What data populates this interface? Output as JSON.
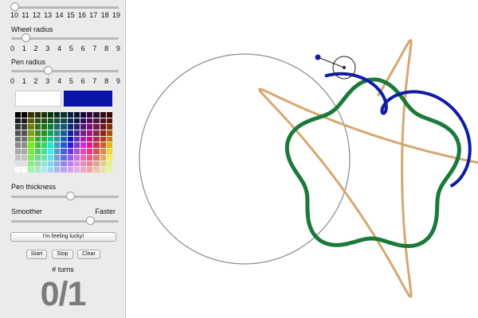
{
  "controls": {
    "sliders": [
      {
        "id": "top",
        "label": "",
        "min": 10,
        "max": 19,
        "value": 10,
        "ticks": [
          "10",
          "11",
          "12",
          "13",
          "14",
          "15",
          "16",
          "17",
          "18",
          "19"
        ]
      },
      {
        "id": "wheel",
        "label": "Wheel radius",
        "min": 0,
        "max": 9,
        "value": 1,
        "ticks": [
          "0",
          "1",
          "2",
          "3",
          "4",
          "5",
          "6",
          "7",
          "8",
          "9"
        ]
      },
      {
        "id": "pen",
        "label": "Pen radius",
        "min": 0,
        "max": 9,
        "value": 3,
        "ticks": [
          "0",
          "1",
          "2",
          "3",
          "4",
          "5",
          "6",
          "7",
          "8",
          "9"
        ]
      },
      {
        "id": "thickness",
        "label": "Pen thickness",
        "fraction": 0.55
      },
      {
        "id": "speed",
        "label_left": "Smoother",
        "label_right": "Faster",
        "fraction": 0.75
      }
    ],
    "background_color": "#ffffff",
    "pen_color": "#0c14a8",
    "buttons": {
      "lucky": "I'm feeling lucky!",
      "start": "Start",
      "stop": "Stop",
      "clear": "Clear"
    },
    "turns_label": "# turns",
    "turns_value": "0/1"
  },
  "canvas": {
    "outer_circle_color": "#8a8a8a",
    "inner_wheel_color": "#222222",
    "curves": [
      {
        "name": "star",
        "color": "#d8a771"
      },
      {
        "name": "pentagon",
        "color": "#1b7a3a"
      },
      {
        "name": "loops",
        "color": "#0f1ca6"
      }
    ]
  }
}
